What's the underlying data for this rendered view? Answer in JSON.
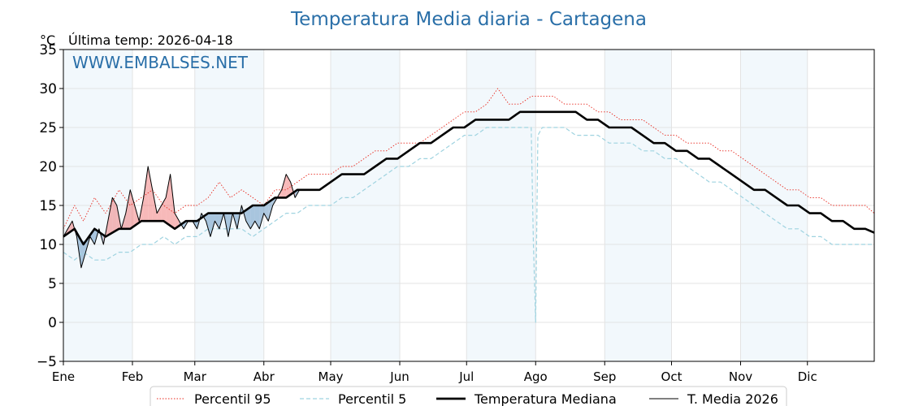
{
  "chart_data": {
    "type": "line",
    "title": "Temperatura Media diaria - Cartagena",
    "unit_label": "°C",
    "last_temp_label": "Última temp: 2026-04-18",
    "watermark": "WWW.EMBALSES.NET",
    "ylim": [
      -5,
      35
    ],
    "yticks": [
      -5,
      0,
      5,
      10,
      15,
      20,
      25,
      30,
      35
    ],
    "ytick_labels": [
      "−5",
      "0",
      "5",
      "10",
      "15",
      "20",
      "25",
      "30",
      "35"
    ],
    "xlim_day": [
      1,
      365
    ],
    "month_labels": [
      "Ene",
      "Feb",
      "Mar",
      "Abr",
      "May",
      "Jun",
      "Jul",
      "Ago",
      "Sep",
      "Oct",
      "Nov",
      "Dic"
    ],
    "month_start_days": [
      1,
      32,
      60,
      91,
      121,
      152,
      182,
      213,
      244,
      274,
      305,
      335
    ],
    "shaded_months": [
      0,
      2,
      4,
      6,
      8,
      10
    ],
    "grid": true,
    "series": [
      {
        "name": "Percentil 95",
        "style": "dotted",
        "color": "#e8281e",
        "x": [
          1,
          6,
          10,
          15,
          20,
          26,
          31,
          36,
          41,
          46,
          51,
          56,
          61,
          66,
          71,
          76,
          81,
          86,
          91,
          96,
          101,
          106,
          111,
          116,
          121,
          126,
          131,
          136,
          141,
          146,
          151,
          156,
          161,
          166,
          171,
          176,
          181,
          186,
          191,
          196,
          201,
          206,
          211,
          216,
          221,
          226,
          231,
          236,
          241,
          246,
          251,
          256,
          261,
          266,
          271,
          276,
          281,
          286,
          291,
          296,
          301,
          306,
          311,
          316,
          321,
          326,
          331,
          336,
          341,
          346,
          351,
          356,
          361,
          365
        ],
        "values": [
          12,
          15,
          13,
          16,
          14,
          17,
          15,
          16,
          17,
          15,
          14,
          15,
          15,
          16,
          18,
          16,
          17,
          16,
          15,
          17,
          17,
          18,
          19,
          19,
          19,
          20,
          20,
          21,
          22,
          22,
          23,
          23,
          23,
          24,
          25,
          26,
          27,
          27,
          28,
          30,
          28,
          28,
          29,
          29,
          29,
          28,
          28,
          28,
          27,
          27,
          26,
          26,
          26,
          25,
          24,
          24,
          23,
          23,
          23,
          22,
          22,
          21,
          20,
          19,
          18,
          17,
          17,
          16,
          16,
          15,
          15,
          15,
          15,
          14
        ]
      },
      {
        "name": "Percentil 5",
        "style": "dashed",
        "color": "#9fd3e0",
        "x": [
          1,
          6,
          10,
          15,
          20,
          26,
          31,
          36,
          41,
          46,
          51,
          56,
          61,
          66,
          71,
          76,
          81,
          86,
          91,
          96,
          101,
          106,
          111,
          116,
          121,
          126,
          131,
          136,
          141,
          146,
          151,
          156,
          161,
          166,
          171,
          176,
          181,
          186,
          191,
          196,
          201,
          206,
          211,
          212,
          213,
          214,
          216,
          221,
          226,
          231,
          236,
          241,
          246,
          251,
          256,
          261,
          266,
          271,
          276,
          281,
          286,
          291,
          296,
          301,
          306,
          311,
          316,
          321,
          326,
          331,
          336,
          341,
          346,
          351,
          356,
          361,
          365
        ],
        "values": [
          9,
          8,
          9,
          8,
          8,
          9,
          9,
          10,
          10,
          11,
          10,
          11,
          11,
          12,
          12,
          12,
          12,
          11,
          12,
          13,
          14,
          14,
          15,
          15,
          15,
          16,
          16,
          17,
          18,
          19,
          20,
          20,
          21,
          21,
          22,
          23,
          24,
          24,
          25,
          25,
          25,
          25,
          25,
          10,
          0,
          24,
          25,
          25,
          25,
          24,
          24,
          24,
          23,
          23,
          23,
          22,
          22,
          21,
          21,
          20,
          19,
          18,
          18,
          17,
          16,
          15,
          14,
          13,
          12,
          12,
          11,
          11,
          10,
          10,
          10,
          10,
          10
        ]
      },
      {
        "name": "Temperatura Mediana",
        "style": "solid-thick",
        "color": "#000000",
        "x": [
          1,
          6,
          10,
          15,
          20,
          26,
          31,
          36,
          41,
          46,
          51,
          56,
          61,
          66,
          71,
          76,
          81,
          86,
          91,
          96,
          101,
          106,
          111,
          116,
          121,
          126,
          131,
          136,
          141,
          146,
          151,
          156,
          161,
          166,
          171,
          176,
          181,
          186,
          191,
          196,
          201,
          206,
          211,
          216,
          221,
          226,
          231,
          236,
          241,
          246,
          251,
          256,
          261,
          266,
          271,
          276,
          281,
          286,
          291,
          296,
          301,
          306,
          311,
          316,
          321,
          326,
          331,
          336,
          341,
          346,
          351,
          356,
          361,
          365
        ],
        "values": [
          11,
          12,
          10,
          12,
          11,
          12,
          12,
          13,
          13,
          13,
          12,
          13,
          13,
          14,
          14,
          14,
          14,
          15,
          15,
          16,
          16,
          17,
          17,
          17,
          18,
          19,
          19,
          19,
          20,
          21,
          21,
          22,
          23,
          23,
          24,
          25,
          25,
          26,
          26,
          26,
          26,
          27,
          27,
          27,
          27,
          27,
          27,
          26,
          26,
          25,
          25,
          25,
          24,
          23,
          23,
          22,
          22,
          21,
          21,
          20,
          19,
          18,
          17,
          17,
          16,
          15,
          15,
          14,
          14,
          13,
          13,
          12,
          12,
          11.5
        ]
      },
      {
        "name": "T. Media 2026",
        "style": "solid-thin",
        "color": "#000000",
        "x": [
          1,
          3,
          5,
          7,
          9,
          11,
          13,
          15,
          17,
          19,
          21,
          23,
          25,
          27,
          29,
          31,
          33,
          35,
          37,
          39,
          41,
          43,
          45,
          47,
          49,
          51,
          53,
          55,
          57,
          59,
          61,
          63,
          65,
          67,
          69,
          71,
          73,
          75,
          77,
          79,
          81,
          83,
          85,
          87,
          89,
          91,
          93,
          95,
          97,
          99,
          101,
          103,
          105,
          107,
          108
        ],
        "values": [
          11,
          12,
          13,
          11,
          7,
          9,
          11,
          10,
          12,
          10,
          13,
          16,
          15,
          12,
          14,
          17,
          15,
          13,
          16,
          20,
          17,
          14,
          15,
          16,
          19,
          14,
          13,
          12,
          13,
          13,
          12,
          14,
          13,
          11,
          13,
          12,
          14,
          11,
          14,
          12,
          15,
          13,
          12,
          13,
          12,
          14,
          13,
          15,
          16,
          17,
          19,
          18,
          16,
          17,
          17
        ]
      }
    ],
    "legend": {
      "placement": "bottom-center",
      "entries": [
        "Percentil 95",
        "Percentil 5",
        "Temperatura Mediana",
        "T. Media 2026"
      ]
    }
  }
}
